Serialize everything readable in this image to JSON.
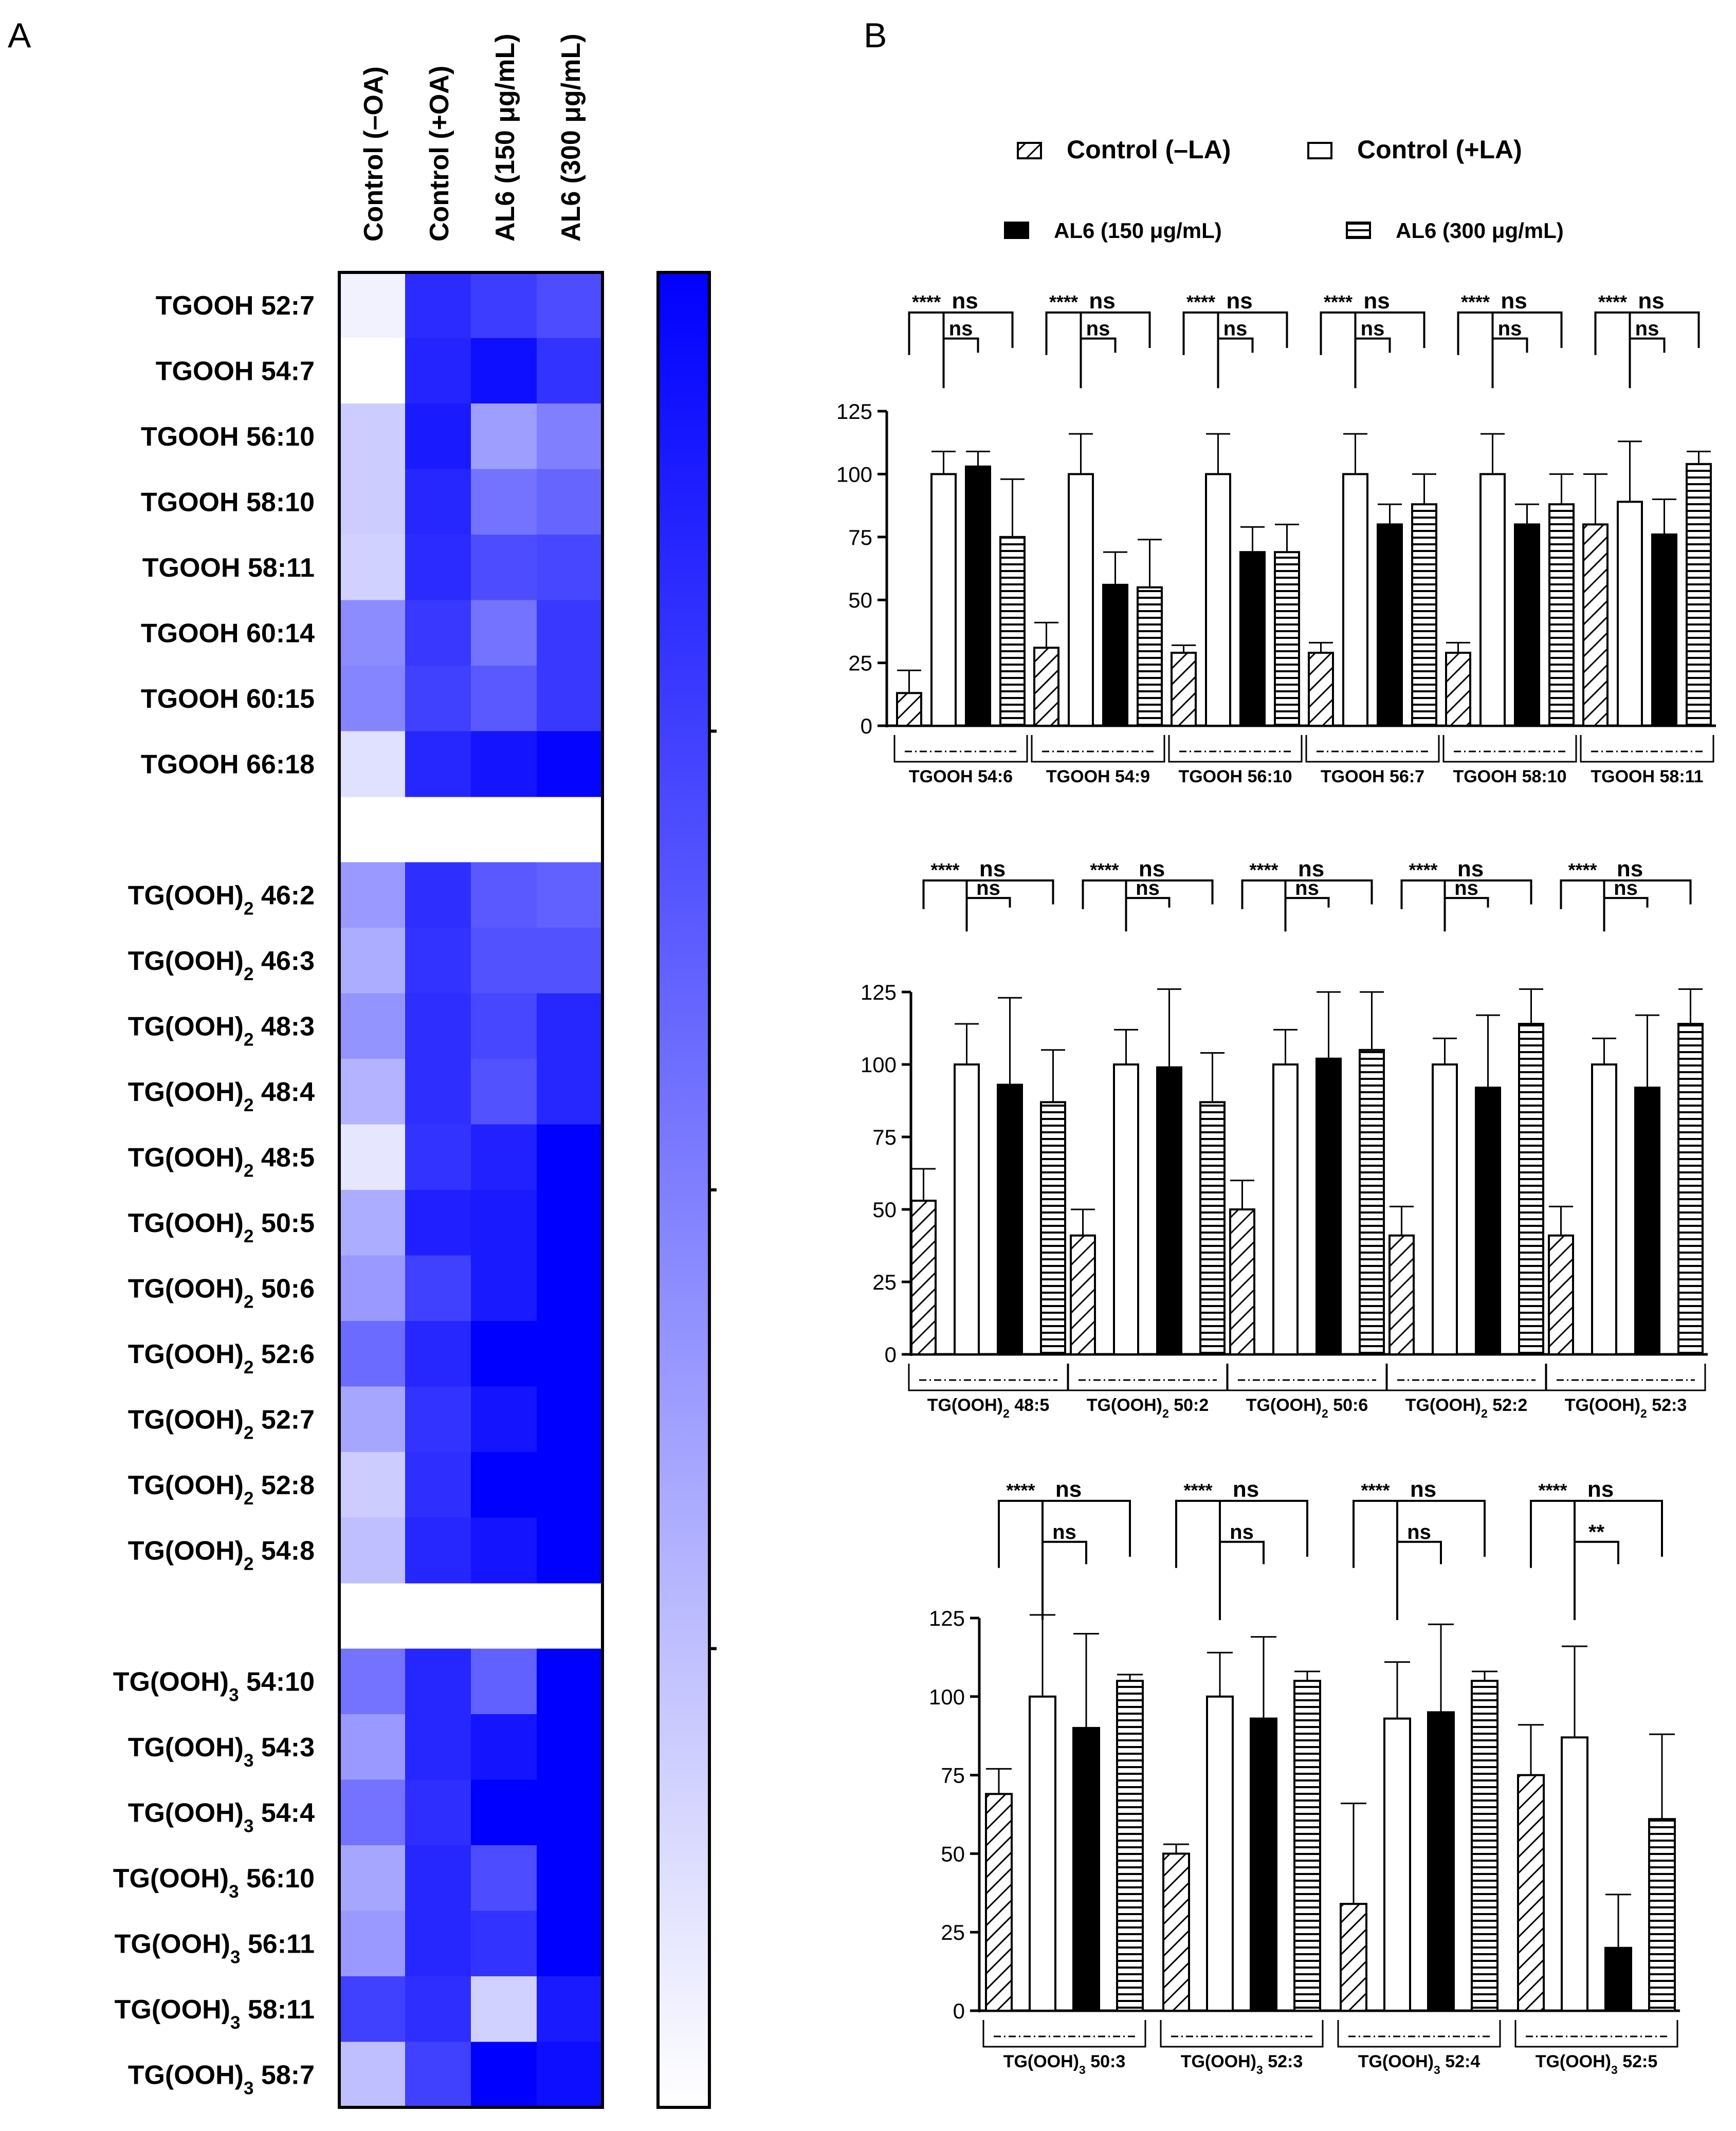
{
  "panel_labels": {
    "a": "A",
    "b": "B"
  },
  "chart_data": [
    {
      "type": "heatmap",
      "panel": "A",
      "columns": [
        "Control (–OA)",
        "Control (+OA)",
        "AL6 (150 μg/mL)",
        "AL6 (300 μg/mL)"
      ],
      "color_low": "#ffffff",
      "color_high": "#0000ff",
      "scale": "relative intensity 0-1 (no numeric ticks shown)",
      "groups": [
        {
          "rows": [
            {
              "base": "TGOOH",
              "sub": "",
              "suffix": "52:7",
              "values": [
                0.05,
                0.83,
                0.76,
                0.7
              ]
            },
            {
              "base": "TGOOH",
              "sub": "",
              "suffix": "54:7",
              "values": [
                0.0,
                0.86,
                0.94,
                0.8
              ]
            },
            {
              "base": "TGOOH",
              "sub": "",
              "suffix": "56:10",
              "values": [
                0.2,
                0.9,
                0.38,
                0.5
              ]
            },
            {
              "base": "TGOOH",
              "sub": "",
              "suffix": "58:10",
              "values": [
                0.2,
                0.85,
                0.55,
                0.6
              ]
            },
            {
              "base": "TGOOH",
              "sub": "",
              "suffix": "58:11",
              "values": [
                0.18,
                0.83,
                0.7,
                0.72
              ]
            },
            {
              "base": "TGOOH",
              "sub": "",
              "suffix": "60:14",
              "values": [
                0.45,
                0.78,
                0.55,
                0.78
              ]
            },
            {
              "base": "TGOOH",
              "sub": "",
              "suffix": "60:15",
              "values": [
                0.48,
                0.75,
                0.65,
                0.78
              ]
            },
            {
              "base": "TGOOH",
              "sub": "",
              "suffix": "66:18",
              "values": [
                0.12,
                0.85,
                0.92,
                0.98
              ]
            }
          ]
        },
        {
          "rows": [
            {
              "base": "TG(OOH)",
              "sub": "2",
              "suffix": "46:2",
              "values": [
                0.4,
                0.82,
                0.65,
                0.62
              ]
            },
            {
              "base": "TG(OOH)",
              "sub": "2",
              "suffix": "46:3",
              "values": [
                0.32,
                0.8,
                0.68,
                0.68
              ]
            },
            {
              "base": "TG(OOH)",
              "sub": "2",
              "suffix": "48:3",
              "values": [
                0.42,
                0.82,
                0.72,
                0.85
              ]
            },
            {
              "base": "TG(OOH)",
              "sub": "2",
              "suffix": "48:4",
              "values": [
                0.3,
                0.82,
                0.68,
                0.85
              ]
            },
            {
              "base": "TG(OOH)",
              "sub": "2",
              "suffix": "48:5",
              "values": [
                0.1,
                0.8,
                0.87,
                1.0
              ]
            },
            {
              "base": "TG(OOH)",
              "sub": "2",
              "suffix": "50:5",
              "values": [
                0.32,
                0.88,
                0.9,
                1.0
              ]
            },
            {
              "base": "TG(OOH)",
              "sub": "2",
              "suffix": "50:6",
              "values": [
                0.4,
                0.75,
                0.9,
                1.0
              ]
            },
            {
              "base": "TG(OOH)",
              "sub": "2",
              "suffix": "52:6",
              "values": [
                0.58,
                0.85,
                1.0,
                1.0
              ]
            },
            {
              "base": "TG(OOH)",
              "sub": "2",
              "suffix": "52:7",
              "values": [
                0.35,
                0.8,
                0.92,
                1.0
              ]
            },
            {
              "base": "TG(OOH)",
              "sub": "2",
              "suffix": "52:8",
              "values": [
                0.2,
                0.82,
                1.0,
                1.0
              ]
            },
            {
              "base": "TG(OOH)",
              "sub": "2",
              "suffix": "54:8",
              "values": [
                0.25,
                0.85,
                0.92,
                1.0
              ]
            }
          ]
        },
        {
          "rows": [
            {
              "base": "TG(OOH)",
              "sub": "3",
              "suffix": "54:10",
              "values": [
                0.55,
                0.85,
                0.62,
                1.0
              ]
            },
            {
              "base": "TG(OOH)",
              "sub": "3",
              "suffix": "54:3",
              "values": [
                0.4,
                0.85,
                0.92,
                1.0
              ]
            },
            {
              "base": "TG(OOH)",
              "sub": "3",
              "suffix": "54:4",
              "values": [
                0.55,
                0.82,
                1.0,
                1.0
              ]
            },
            {
              "base": "TG(OOH)",
              "sub": "3",
              "suffix": "56:10",
              "values": [
                0.35,
                0.85,
                0.7,
                1.0
              ]
            },
            {
              "base": "TG(OOH)",
              "sub": "3",
              "suffix": "56:11",
              "values": [
                0.4,
                0.85,
                0.8,
                1.0
              ]
            },
            {
              "base": "TG(OOH)",
              "sub": "3",
              "suffix": "58:11",
              "values": [
                0.75,
                0.82,
                0.18,
                0.9
              ]
            },
            {
              "base": "TG(OOH)",
              "sub": "3",
              "suffix": "58:7",
              "values": [
                0.25,
                0.75,
                1.0,
                0.95
              ]
            }
          ]
        }
      ]
    },
    {
      "type": "bar",
      "panel": "B",
      "legend": [
        {
          "label": "Control (–LA)",
          "pattern": "diagonal"
        },
        {
          "label": "Control (+LA)",
          "pattern": "open"
        },
        {
          "label": "AL6 (150 μg/mL)",
          "pattern": "solid"
        },
        {
          "label": "AL6 (300 μg/mL)",
          "pattern": "horizontal"
        }
      ],
      "ylim": [
        0,
        125
      ],
      "yticks": [
        "0",
        "25",
        "50",
        "75",
        "100",
        "125"
      ],
      "subplots": [
        {
          "categories": [
            {
              "base": "TGOOH",
              "sub": "",
              "suffix": "54:6"
            },
            {
              "base": "TGOOH",
              "sub": "",
              "suffix": "54:9"
            },
            {
              "base": "TGOOH",
              "sub": "",
              "suffix": "56:10"
            },
            {
              "base": "TGOOH",
              "sub": "",
              "suffix": "56:7"
            },
            {
              "base": "TGOOH",
              "sub": "",
              "suffix": "58:10"
            },
            {
              "base": "TGOOH",
              "sub": "",
              "suffix": "58:11"
            }
          ],
          "values": [
            [
              13,
              100,
              103,
              75
            ],
            [
              31,
              100,
              56,
              55
            ],
            [
              29,
              100,
              69,
              69
            ],
            [
              29,
              100,
              80,
              88
            ],
            [
              29,
              100,
              80,
              88
            ],
            [
              80,
              89,
              76,
              104
            ]
          ],
          "errors": [
            [
              9,
              9,
              6,
              23
            ],
            [
              10,
              16,
              13,
              19
            ],
            [
              3,
              16,
              10,
              11
            ],
            [
              4,
              16,
              8,
              12
            ],
            [
              4,
              16,
              8,
              12
            ],
            [
              20,
              24,
              14,
              5
            ]
          ],
          "significance": [
            [
              "****",
              "ns",
              "ns"
            ],
            [
              "****",
              "ns",
              "ns"
            ],
            [
              "****",
              "ns",
              "ns"
            ],
            [
              "****",
              "ns",
              "ns"
            ],
            [
              "****",
              "ns",
              "ns"
            ],
            [
              "****",
              "ns",
              "ns"
            ]
          ]
        },
        {
          "categories": [
            {
              "base": "TG(OOH)",
              "sub": "2",
              "suffix": "48:5"
            },
            {
              "base": "TG(OOH)",
              "sub": "2",
              "suffix": "50:2"
            },
            {
              "base": "TG(OOH)",
              "sub": "2",
              "suffix": "50:6"
            },
            {
              "base": "TG(OOH)",
              "sub": "2",
              "suffix": "52:2"
            },
            {
              "base": "TG(OOH)",
              "sub": "2",
              "suffix": "52:3"
            }
          ],
          "values": [
            [
              53,
              100,
              93,
              87
            ],
            [
              41,
              100,
              99,
              87
            ],
            [
              50,
              100,
              102,
              105
            ],
            [
              41,
              100,
              92,
              114
            ],
            [
              41,
              100,
              92,
              114
            ]
          ],
          "errors": [
            [
              11,
              14,
              30,
              18
            ],
            [
              9,
              12,
              27,
              17
            ],
            [
              10,
              12,
              23,
              20
            ],
            [
              10,
              9,
              25,
              12
            ],
            [
              10,
              9,
              25,
              12
            ]
          ],
          "significance": [
            [
              "****",
              "ns",
              "ns"
            ],
            [
              "****",
              "ns",
              "ns"
            ],
            [
              "****",
              "ns",
              "ns"
            ],
            [
              "****",
              "ns",
              "ns"
            ],
            [
              "****",
              "ns",
              "ns"
            ]
          ]
        },
        {
          "categories": [
            {
              "base": "TG(OOH)",
              "sub": "3",
              "suffix": "50:3"
            },
            {
              "base": "TG(OOH)",
              "sub": "3",
              "suffix": "52:3"
            },
            {
              "base": "TG(OOH)",
              "sub": "3",
              "suffix": "52:4"
            },
            {
              "base": "TG(OOH)",
              "sub": "3",
              "suffix": "52:5"
            }
          ],
          "values": [
            [
              69,
              100,
              90,
              105
            ],
            [
              50,
              100,
              93,
              105
            ],
            [
              34,
              93,
              95,
              105
            ],
            [
              75,
              87,
              20,
              61
            ]
          ],
          "errors": [
            [
              8,
              26,
              30,
              2
            ],
            [
              3,
              14,
              26,
              3
            ],
            [
              32,
              18,
              28,
              3
            ],
            [
              16,
              29,
              17,
              27
            ]
          ],
          "significance": [
            [
              "****",
              "ns",
              "ns"
            ],
            [
              "****",
              "ns",
              "ns"
            ],
            [
              "****",
              "ns",
              "ns"
            ],
            [
              "****",
              "ns",
              "**"
            ]
          ]
        }
      ]
    }
  ]
}
